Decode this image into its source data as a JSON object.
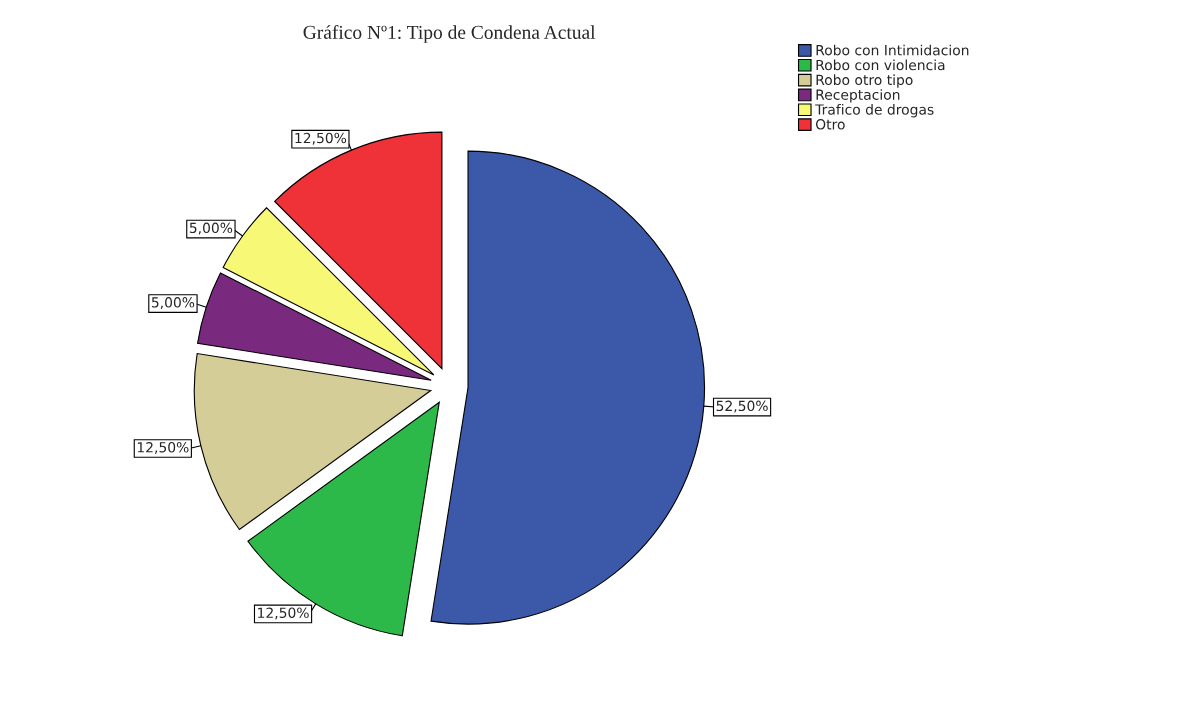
{
  "chart_data": {
    "type": "pie",
    "title": "Gráfico Nº1: Tipo de Condena Actual",
    "categories": [
      "Robo con Intimidacion",
      "Robo con violencia",
      "Robo otro tipo",
      "Receptacion",
      "Trafico de drogas",
      "Otro"
    ],
    "values": [
      52.5,
      12.5,
      12.5,
      5.0,
      5.0,
      12.5
    ],
    "value_labels": [
      "52,50%",
      "12,50%",
      "12,50%",
      "5,00%",
      "5,00%",
      "12,50%"
    ],
    "colors": [
      "#3c58a8",
      "#2db84a",
      "#d4cd98",
      "#7a2a7e",
      "#f8f877",
      "#ee3238"
    ],
    "legend": "top right"
  }
}
